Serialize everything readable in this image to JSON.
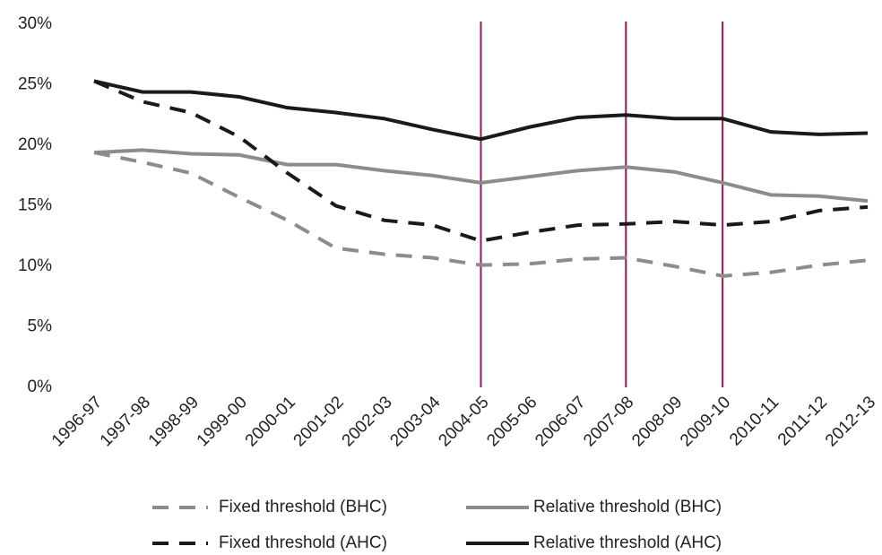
{
  "chart_data": {
    "type": "line",
    "categories": [
      "1996-97",
      "1997-98",
      "1998-99",
      "1999-00",
      "2000-01",
      "2001-02",
      "2002-03",
      "2003-04",
      "2004-05",
      "2005-06",
      "2006-07",
      "2007-08",
      "2008-09",
      "2009-10",
      "2010-11",
      "2011-12",
      "2012-13"
    ],
    "series": [
      {
        "name": "Fixed threshold (BHC)",
        "color": "#8c8c8c",
        "dashed": true,
        "values": [
          19.4,
          18.6,
          17.7,
          15.7,
          13.8,
          11.5,
          11.0,
          10.7,
          10.1,
          10.2,
          10.6,
          10.7,
          10.0,
          9.2,
          9.5,
          10.1,
          10.5
        ]
      },
      {
        "name": "Relative threshold (BHC)",
        "color": "#8c8c8c",
        "dashed": false,
        "values": [
          19.4,
          19.6,
          19.3,
          19.2,
          18.4,
          18.4,
          17.9,
          17.5,
          16.9,
          17.4,
          17.9,
          18.2,
          17.8,
          16.9,
          15.9,
          15.8,
          15.4
        ]
      },
      {
        "name": "Fixed threshold (AHC)",
        "color": "#1a1a1a",
        "dashed": true,
        "values": [
          25.3,
          23.6,
          22.7,
          20.7,
          17.7,
          15.0,
          13.8,
          13.4,
          12.1,
          12.8,
          13.4,
          13.5,
          13.7,
          13.4,
          13.7,
          14.6,
          14.9
        ]
      },
      {
        "name": "Relative threshold (AHC)",
        "color": "#1a1a1a",
        "dashed": false,
        "values": [
          25.3,
          24.4,
          24.4,
          24.0,
          23.1,
          22.7,
          22.2,
          21.3,
          20.5,
          21.5,
          22.3,
          22.5,
          22.2,
          22.2,
          21.1,
          20.9,
          21.0
        ]
      }
    ],
    "ylim": [
      0,
      30
    ],
    "yticks": [
      {
        "value": 0,
        "label": "0%"
      },
      {
        "value": 5,
        "label": "5%"
      },
      {
        "value": 10,
        "label": "10%"
      },
      {
        "value": 15,
        "label": "15%"
      },
      {
        "value": 20,
        "label": "20%"
      },
      {
        "value": 25,
        "label": "25%"
      },
      {
        "value": 30,
        "label": "30%"
      }
    ],
    "reference_lines_at": [
      "2004-05",
      "2007-08",
      "2009-10"
    ],
    "reference_line_color": "#8b1a5a",
    "grid": false,
    "legend": "bottom"
  }
}
